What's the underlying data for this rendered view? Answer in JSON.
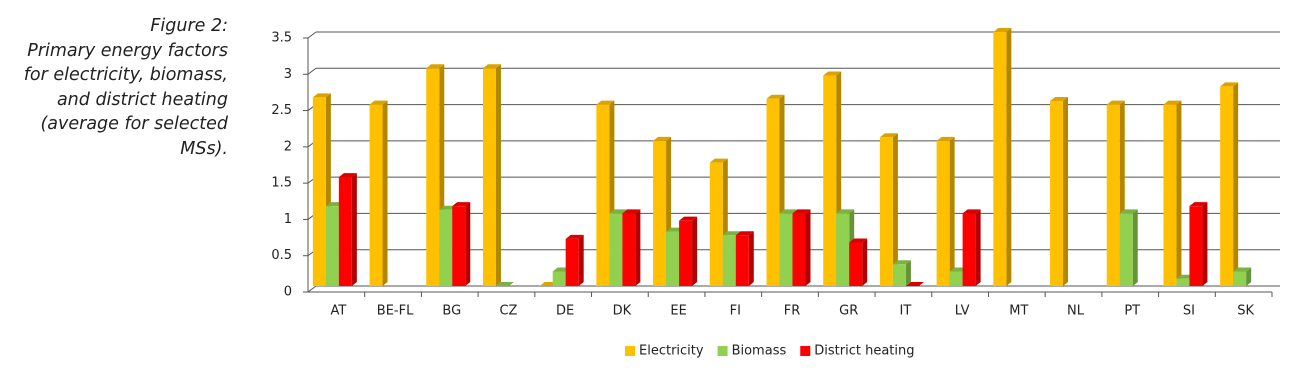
{
  "chart_data": {
    "type": "bar",
    "label": "Figure 2:",
    "title": "Primary energy factors for electricity, biomass, and district heating (average for selected MSs).",
    "categories": [
      "AT",
      "BE-FL",
      "BG",
      "CZ",
      "DE",
      "DK",
      "EE",
      "FI",
      "FR",
      "GR",
      "IT",
      "LV",
      "MT",
      "NL",
      "PT",
      "SI",
      "SK"
    ],
    "series": [
      {
        "name": "Electricity",
        "color": "#ffc000",
        "values": [
          2.6,
          2.5,
          3.0,
          3.0,
          0,
          2.5,
          2.0,
          1.7,
          2.58,
          2.9,
          2.05,
          2.0,
          3.5,
          2.55,
          2.5,
          2.5,
          2.75
        ]
      },
      {
        "name": "Biomass",
        "color": "#92d050",
        "values": [
          1.1,
          null,
          1.05,
          0,
          0.2,
          1.0,
          0.75,
          0.7,
          1.0,
          1.0,
          0.3,
          0.2,
          null,
          null,
          1.0,
          0.1,
          0.2
        ]
      },
      {
        "name": "District heating",
        "color": "#ff0000",
        "values": [
          1.5,
          null,
          1.1,
          null,
          0.65,
          1.0,
          0.9,
          0.7,
          1.0,
          0.6,
          0,
          1.0,
          null,
          null,
          null,
          1.1,
          null
        ]
      }
    ],
    "ylim": [
      0,
      3.5
    ],
    "yticks": [
      0,
      0.5,
      1,
      1.5,
      2,
      2.5,
      3,
      3.5
    ],
    "grid": true,
    "legend": "bottom"
  }
}
